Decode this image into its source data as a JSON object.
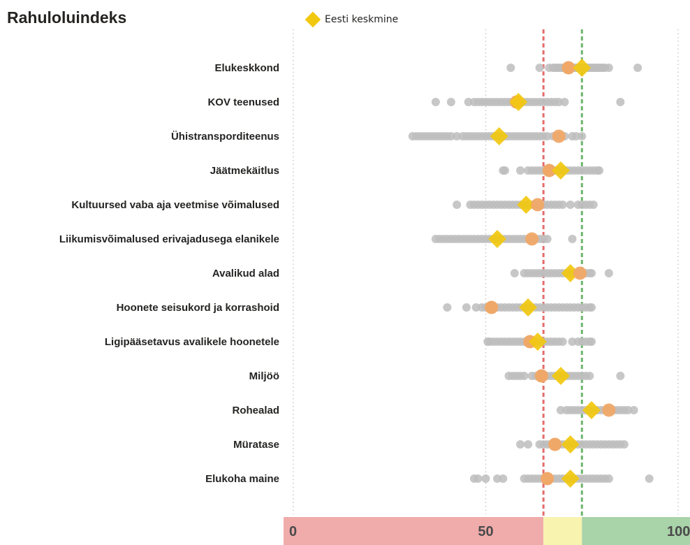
{
  "title": "Rahuloluindeks",
  "chart_data": {
    "type": "scatter",
    "title": "Rahuloluindeks",
    "xlim": [
      0,
      100
    ],
    "legend": {
      "position": "top",
      "entries": [
        {
          "name": "Eesti keskmine",
          "color": "#F2C80F"
        }
      ]
    },
    "x_ticks": [
      "0",
      "50",
      "100"
    ],
    "thresholds": {
      "red": 65,
      "green": 75
    },
    "bands": [
      {
        "from": 0,
        "to": 65,
        "color": "#F0ABAB"
      },
      {
        "from": 65,
        "to": 75,
        "color": "#F8F3AF"
      },
      {
        "from": 75,
        "to": 100,
        "color": "#A9D3A9"
      }
    ],
    "categories": [
      {
        "label": "Elukeskkond",
        "avg": 75,
        "highlight": 71.5,
        "points": [
          56.5,
          64,
          66.5,
          67.5,
          68,
          68.5,
          69,
          69.5,
          70,
          70.5,
          71,
          71.5,
          72,
          72.5,
          73,
          73.5,
          74,
          74.5,
          75,
          75.5,
          76,
          76.5,
          77,
          77.5,
          78,
          78.5,
          79,
          79.5,
          80,
          80.5,
          81,
          82,
          89.5
        ]
      },
      {
        "label": "KOV teenused",
        "avg": 58.5,
        "highlight": 58,
        "points": [
          37,
          41,
          45.5,
          47,
          48,
          49,
          50,
          51,
          52,
          53,
          54,
          55,
          56,
          57,
          58,
          59,
          60,
          61,
          62,
          63,
          64,
          65,
          66,
          67,
          68,
          69,
          70.5,
          85
        ]
      },
      {
        "label": "Ühistransporditeenus",
        "avg": 53.5,
        "highlight": 69,
        "points": [
          31,
          32,
          33,
          34,
          35,
          36,
          37,
          38,
          39,
          40,
          41,
          42.5,
          44,
          45,
          46,
          47,
          48,
          49,
          50,
          51,
          52,
          53,
          54,
          55,
          56,
          57,
          58,
          59,
          60,
          61,
          62,
          63,
          64,
          65,
          66,
          67.5,
          69,
          70.5,
          72.5,
          73.5,
          75
        ]
      },
      {
        "label": "Jäätmekäitlus",
        "avg": 69.5,
        "highlight": 66.5,
        "points": [
          54.5,
          55,
          59,
          61,
          62,
          63,
          64,
          65,
          66,
          67,
          68,
          69,
          70,
          71,
          72,
          73,
          74,
          75,
          76,
          77,
          78,
          79,
          79.5
        ]
      },
      {
        "label": "Kultuursed vaba aja veetmise võimalused",
        "avg": 60.5,
        "highlight": 63.5,
        "points": [
          42.5,
          46,
          47,
          48,
          49,
          50,
          51,
          52,
          53,
          54,
          55,
          56,
          57,
          58,
          59,
          60,
          61,
          62,
          63,
          64,
          65,
          66,
          67,
          68,
          69,
          70,
          72,
          74,
          75,
          76,
          77,
          78
        ]
      },
      {
        "label": "Liikumisvõimalused erivajadusega elanikele",
        "avg": 53,
        "highlight": 62,
        "points": [
          37,
          38,
          39,
          40,
          41,
          42,
          43,
          44,
          45,
          46,
          47,
          48,
          49,
          50,
          51,
          52,
          53,
          54,
          55,
          56,
          57,
          58,
          59,
          60,
          61,
          62,
          63,
          64,
          65,
          66,
          72.5
        ]
      },
      {
        "label": "Avalikud alad",
        "avg": 72,
        "highlight": 74.5,
        "points": [
          57.5,
          60,
          61,
          62,
          63,
          64,
          65,
          66,
          67,
          68,
          69,
          70,
          71,
          72,
          73,
          74,
          75,
          76,
          77,
          77.5,
          82
        ]
      },
      {
        "label": "Hoonete seisukord ja korrashoid",
        "avg": 61,
        "highlight": 51.5,
        "points": [
          40,
          45,
          47.5,
          49,
          50,
          51,
          52,
          53,
          54,
          55,
          56,
          57,
          58,
          59,
          60,
          61,
          62,
          63,
          64,
          65,
          66,
          67,
          68,
          69,
          70,
          71,
          72,
          73,
          74,
          75,
          76,
          77,
          77.5
        ]
      },
      {
        "label": "Ligipääsetavus avalikele hoonetele",
        "avg": 63.5,
        "highlight": 61.5,
        "points": [
          50.5,
          51,
          52,
          53,
          54,
          55,
          56,
          57,
          58,
          59,
          60,
          61,
          62,
          63,
          64,
          65,
          66,
          67,
          68,
          69,
          70,
          72.5,
          74,
          75,
          76,
          77,
          77.5
        ]
      },
      {
        "label": "Miljöö",
        "avg": 69.5,
        "highlight": 64.5,
        "points": [
          56,
          57,
          58,
          59,
          60,
          62,
          63,
          64,
          65,
          66,
          67,
          68,
          69,
          70,
          71,
          72,
          73,
          74,
          75,
          76,
          77,
          85
        ]
      },
      {
        "label": "Rohealad",
        "avg": 77.5,
        "highlight": 82,
        "points": [
          69.5,
          71,
          72,
          73,
          74,
          75,
          76,
          77,
          78,
          79,
          80,
          81,
          82,
          83,
          84,
          85,
          86,
          87,
          88.5
        ]
      },
      {
        "label": "Müratase",
        "avg": 72,
        "highlight": 68,
        "points": [
          59,
          61,
          64,
          65,
          66,
          67,
          68,
          69,
          70,
          71,
          72,
          73,
          74,
          75,
          76,
          77,
          78,
          79,
          80,
          81,
          82,
          83,
          84,
          85,
          86
        ]
      },
      {
        "label": "Elukoha maine",
        "avg": 72,
        "highlight": 66,
        "points": [
          47,
          48,
          50,
          53,
          54.5,
          60,
          61,
          62,
          63,
          64,
          65,
          66,
          67,
          68,
          69,
          70,
          71,
          72,
          73,
          74,
          75,
          76,
          77,
          78,
          79,
          80,
          81,
          82,
          92.5
        ]
      }
    ]
  }
}
